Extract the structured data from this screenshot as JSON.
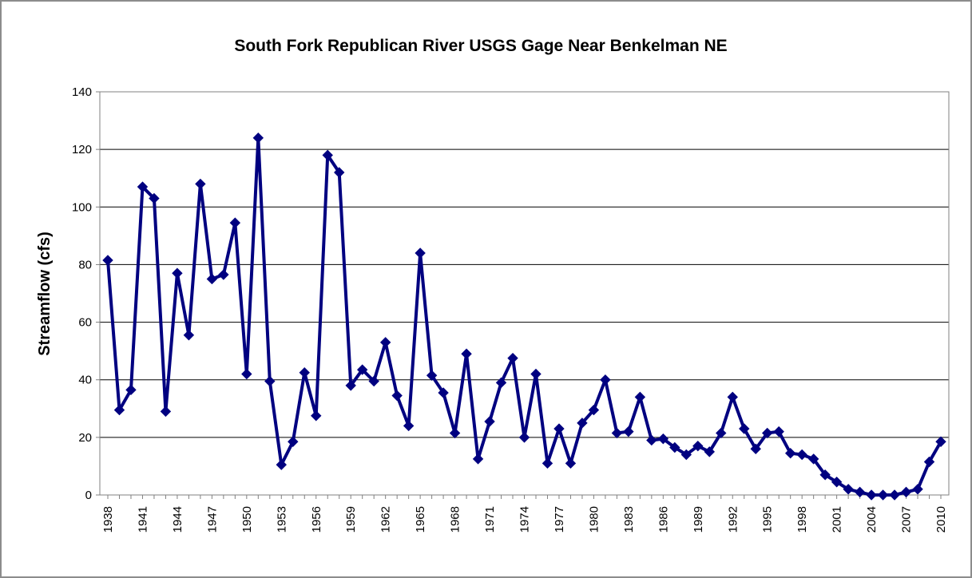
{
  "chart_data": {
    "type": "line",
    "title": "South Fork Republican River USGS Gage Near Benkelman NE",
    "xlabel": "",
    "ylabel": "Streamflow (cfs)",
    "ylim": [
      0,
      140
    ],
    "yticks": [
      0,
      20,
      40,
      60,
      80,
      100,
      120,
      140
    ],
    "xlim": [
      1938,
      2010
    ],
    "xticks": [
      1938,
      1941,
      1944,
      1947,
      1950,
      1953,
      1956,
      1959,
      1962,
      1965,
      1968,
      1971,
      1974,
      1977,
      1980,
      1983,
      1986,
      1989,
      1992,
      1995,
      1998,
      2001,
      2004,
      2007,
      2010
    ],
    "grid": "horizontal",
    "legend": "none",
    "line_color": "#000080",
    "x": [
      1938,
      1939,
      1940,
      1941,
      1942,
      1943,
      1944,
      1945,
      1946,
      1947,
      1948,
      1949,
      1950,
      1951,
      1952,
      1953,
      1954,
      1955,
      1956,
      1957,
      1958,
      1959,
      1960,
      1961,
      1962,
      1963,
      1964,
      1965,
      1966,
      1967,
      1968,
      1969,
      1970,
      1971,
      1972,
      1973,
      1974,
      1975,
      1976,
      1977,
      1978,
      1979,
      1980,
      1981,
      1982,
      1983,
      1984,
      1985,
      1986,
      1987,
      1988,
      1989,
      1990,
      1991,
      1992,
      1993,
      1994,
      1995,
      1996,
      1997,
      1998,
      1999,
      2000,
      2001,
      2002,
      2003,
      2004,
      2005,
      2006,
      2007,
      2008,
      2009,
      2010
    ],
    "series": [
      {
        "values": [
          81.5,
          29.5,
          36.5,
          107,
          103,
          29,
          77,
          55.5,
          108,
          75,
          76.5,
          94.5,
          42,
          124,
          39.5,
          10.5,
          18.5,
          42.5,
          27.5,
          118,
          112,
          38,
          43.5,
          39.5,
          53,
          34.5,
          24,
          84,
          41.5,
          35.5,
          21.5,
          49,
          12.5,
          25.5,
          39,
          47.5,
          20,
          42,
          11,
          23,
          11,
          25,
          29.5,
          40,
          21.5,
          22,
          34,
          19,
          19.5,
          16.5,
          14,
          17,
          15,
          21.5,
          34,
          23,
          16,
          21.5,
          22,
          14.5,
          14,
          12.5,
          7,
          4.5,
          2,
          1,
          0,
          0,
          0,
          1,
          2,
          11.5,
          18.5
        ]
      }
    ]
  }
}
